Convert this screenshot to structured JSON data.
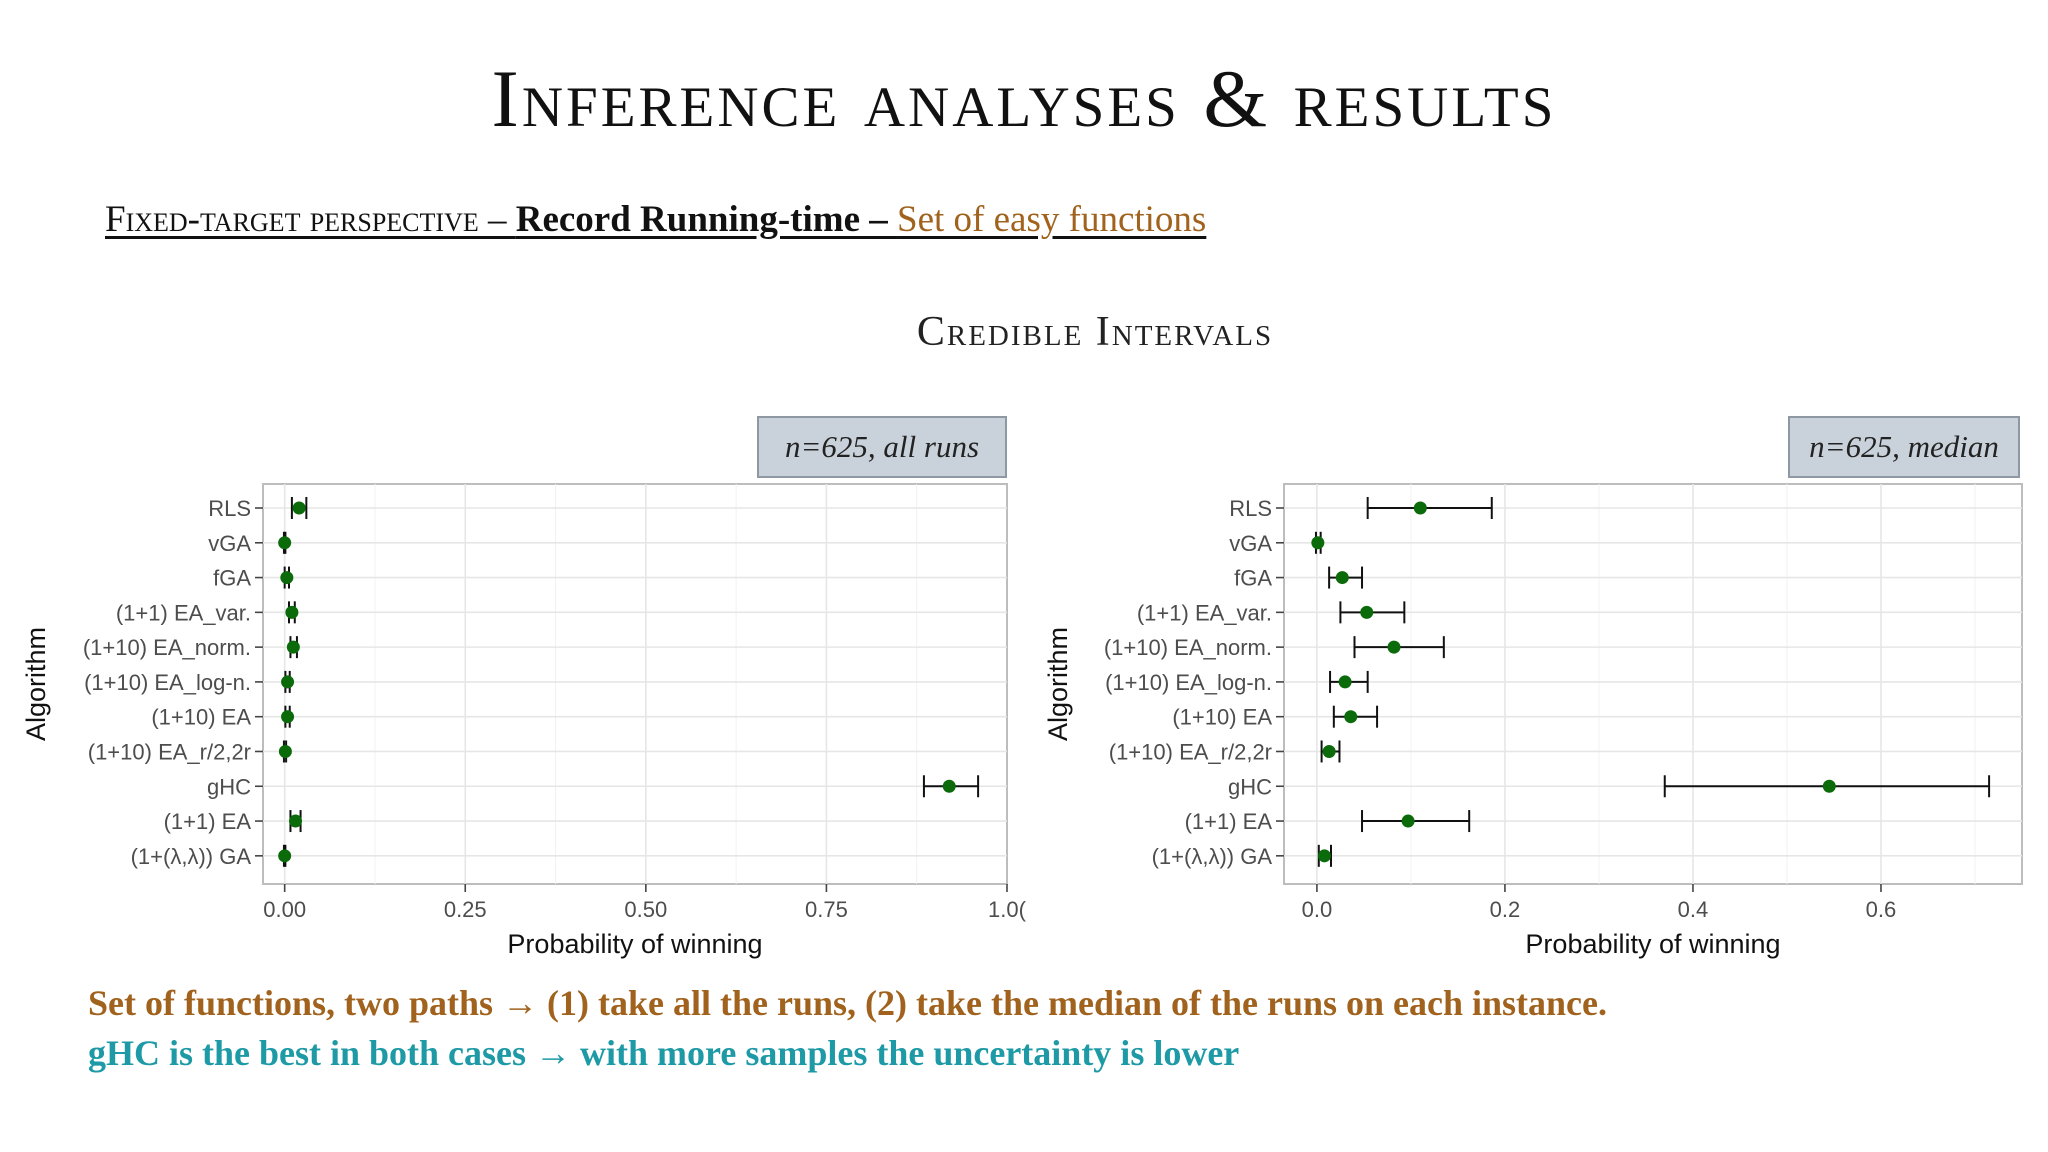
{
  "slide": {
    "title": "Inference analyses & results",
    "subtitle": {
      "part1": "Fixed-target perspective – ",
      "part2": "Record Running-time – ",
      "part3": "Set of easy functions"
    },
    "section_title": "Credible Intervals",
    "note1": "Set of functions, two paths → (1) take all the runs, (2) take the median of the runs on each instance.",
    "note2": "gHC is the best in both cases → with more samples the uncertainty is lower"
  },
  "colors": {
    "accent": "#a0621d",
    "teal": "#1d9aa6",
    "point": "#0b6b0b",
    "panel_tag": "#c9d2da"
  },
  "chart_data": [
    {
      "type": "interval",
      "tag": "n=625, all runs",
      "xlabel": "Probability of winning",
      "ylabel": "Algorithm",
      "xlim": [
        -0.03,
        1.0
      ],
      "xticks": [
        0.0,
        0.25,
        0.5,
        0.75,
        1.0
      ],
      "xtick_labels": [
        "0.00",
        "0.25",
        "0.50",
        "0.75",
        "1.0("
      ],
      "grid": true,
      "categories": [
        "RLS",
        "vGA",
        "fGA",
        "(1+1) EA_var.",
        "(1+10) EA_norm.",
        "(1+10) EA_log-n.",
        "(1+10) EA",
        "(1+10) EA_r/2,2r",
        "gHC",
        "(1+1) EA",
        "(1+(λ,λ)) GA"
      ],
      "median": [
        0.02,
        0.0,
        0.003,
        0.01,
        0.012,
        0.004,
        0.004,
        0.001,
        0.92,
        0.015,
        0.0
      ],
      "lower": [
        0.01,
        -0.001,
        0.0,
        0.006,
        0.008,
        0.001,
        0.001,
        -0.001,
        0.885,
        0.008,
        -0.001
      ],
      "upper": [
        0.03,
        0.001,
        0.006,
        0.014,
        0.017,
        0.007,
        0.007,
        0.002,
        0.96,
        0.022,
        0.001
      ]
    },
    {
      "type": "interval",
      "tag": "n=625, median",
      "xlabel": "Probability of winning",
      "ylabel": "Algorithm",
      "xlim": [
        -0.035,
        0.75
      ],
      "xticks": [
        0.0,
        0.2,
        0.4,
        0.6
      ],
      "xtick_labels": [
        "0.0",
        "0.2",
        "0.4",
        "0.6"
      ],
      "grid": true,
      "categories": [
        "RLS",
        "vGA",
        "fGA",
        "(1+1) EA_var.",
        "(1+10) EA_norm.",
        "(1+10) EA_log-n.",
        "(1+10) EA",
        "(1+10) EA_r/2,2r",
        "gHC",
        "(1+1) EA",
        "(1+(λ,λ)) GA"
      ],
      "median": [
        0.11,
        0.001,
        0.027,
        0.053,
        0.082,
        0.03,
        0.036,
        0.013,
        0.545,
        0.097,
        0.008
      ],
      "lower": [
        0.054,
        -0.001,
        0.013,
        0.025,
        0.04,
        0.014,
        0.018,
        0.005,
        0.37,
        0.048,
        0.002
      ],
      "upper": [
        0.186,
        0.004,
        0.048,
        0.093,
        0.135,
        0.054,
        0.064,
        0.024,
        0.715,
        0.162,
        0.015
      ]
    }
  ]
}
